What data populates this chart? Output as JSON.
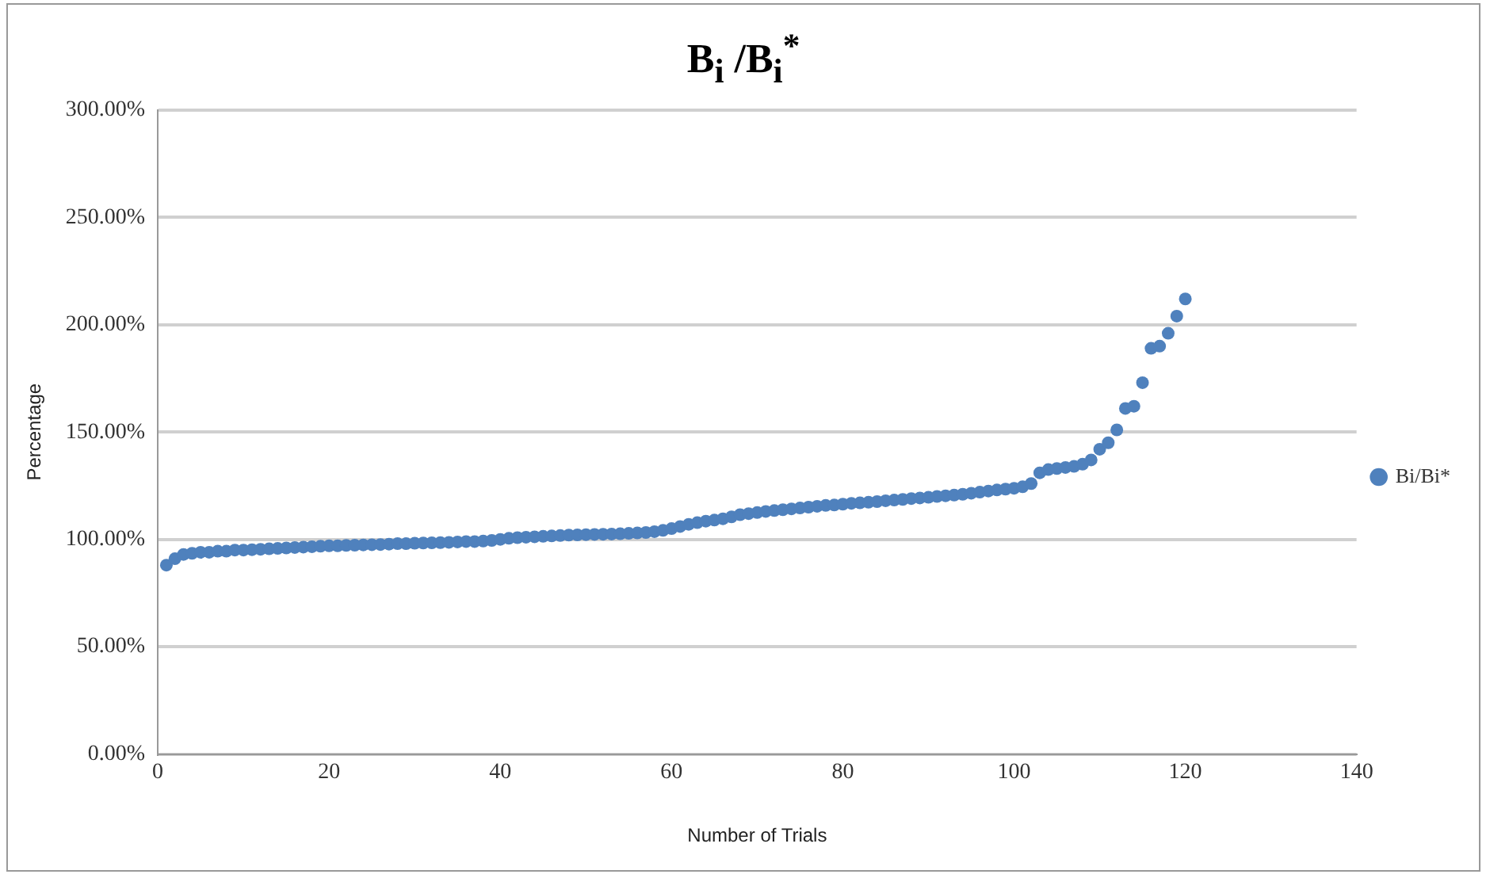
{
  "chart_data": {
    "type": "scatter",
    "title": "B$_{i}$ /B$_{i}$$^{*}$",
    "xlabel": "Number of Trials",
    "ylabel": "Percentage",
    "x": [
      1,
      2,
      3,
      4,
      5,
      6,
      7,
      8,
      9,
      10,
      11,
      12,
      13,
      14,
      15,
      16,
      17,
      18,
      19,
      20,
      21,
      22,
      23,
      24,
      25,
      26,
      27,
      28,
      29,
      30,
      31,
      32,
      33,
      34,
      35,
      36,
      37,
      38,
      39,
      40,
      41,
      42,
      43,
      44,
      45,
      46,
      47,
      48,
      49,
      50,
      51,
      52,
      53,
      54,
      55,
      56,
      57,
      58,
      59,
      60,
      61,
      62,
      63,
      64,
      65,
      66,
      67,
      68,
      69,
      70,
      71,
      72,
      73,
      74,
      75,
      76,
      77,
      78,
      79,
      80,
      81,
      82,
      83,
      84,
      85,
      86,
      87,
      88,
      89,
      90,
      91,
      92,
      93,
      94,
      95,
      96,
      97,
      98,
      99,
      100,
      101,
      102,
      103,
      104,
      105,
      106,
      107,
      108,
      109,
      110,
      111,
      112,
      113,
      114,
      115,
      116,
      117,
      118,
      119,
      120
    ],
    "series": [
      {
        "name": "Bi/Bi*",
        "color": "#4f81bd",
        "values": [
          88,
          91,
          93,
          93.5,
          94,
          94,
          94.5,
          94.5,
          95,
          95,
          95.2,
          95.4,
          95.6,
          95.8,
          96,
          96.2,
          96.4,
          96.6,
          96.8,
          97,
          97,
          97.2,
          97.3,
          97.4,
          97.5,
          97.6,
          97.8,
          98,
          98,
          98.2,
          98.3,
          98.4,
          98.5,
          98.6,
          98.8,
          99,
          99,
          99.2,
          99.5,
          100,
          100.5,
          100.8,
          101,
          101.2,
          101.4,
          101.6,
          101.8,
          102,
          102.1,
          102.2,
          102.3,
          102.4,
          102.5,
          102.6,
          102.8,
          103,
          103.2,
          103.6,
          104.2,
          105,
          106,
          107,
          107.8,
          108.5,
          109,
          109.6,
          110.5,
          111.5,
          112,
          112.5,
          113,
          113.4,
          113.8,
          114.2,
          114.6,
          115,
          115.4,
          115.8,
          116,
          116.4,
          116.8,
          117,
          117.3,
          117.6,
          118,
          118.3,
          118.6,
          119,
          119.3,
          119.6,
          120,
          120.3,
          120.6,
          121,
          121.5,
          122,
          122.5,
          123,
          123.4,
          123.8,
          124.5,
          126,
          131,
          132.5,
          133,
          133.5,
          134,
          135,
          137,
          142,
          145,
          151,
          161,
          162,
          173,
          189,
          190,
          196,
          204,
          212
        ]
      }
    ],
    "xlim": [
      0,
      140
    ],
    "xticks": [
      0,
      20,
      40,
      60,
      80,
      100,
      120,
      140
    ],
    "ylim": [
      0,
      300
    ],
    "yticks": [
      {
        "value": 0,
        "label": "0.00%"
      },
      {
        "value": 50,
        "label": "50.00%"
      },
      {
        "value": 100,
        "label": "100.00%"
      },
      {
        "value": 150,
        "label": "150.00%"
      },
      {
        "value": 200,
        "label": "200.00%"
      },
      {
        "value": 250,
        "label": "250.00%"
      },
      {
        "value": 300,
        "label": "300.00%"
      }
    ],
    "grid": "y",
    "legend": "right",
    "marker": "circle"
  }
}
